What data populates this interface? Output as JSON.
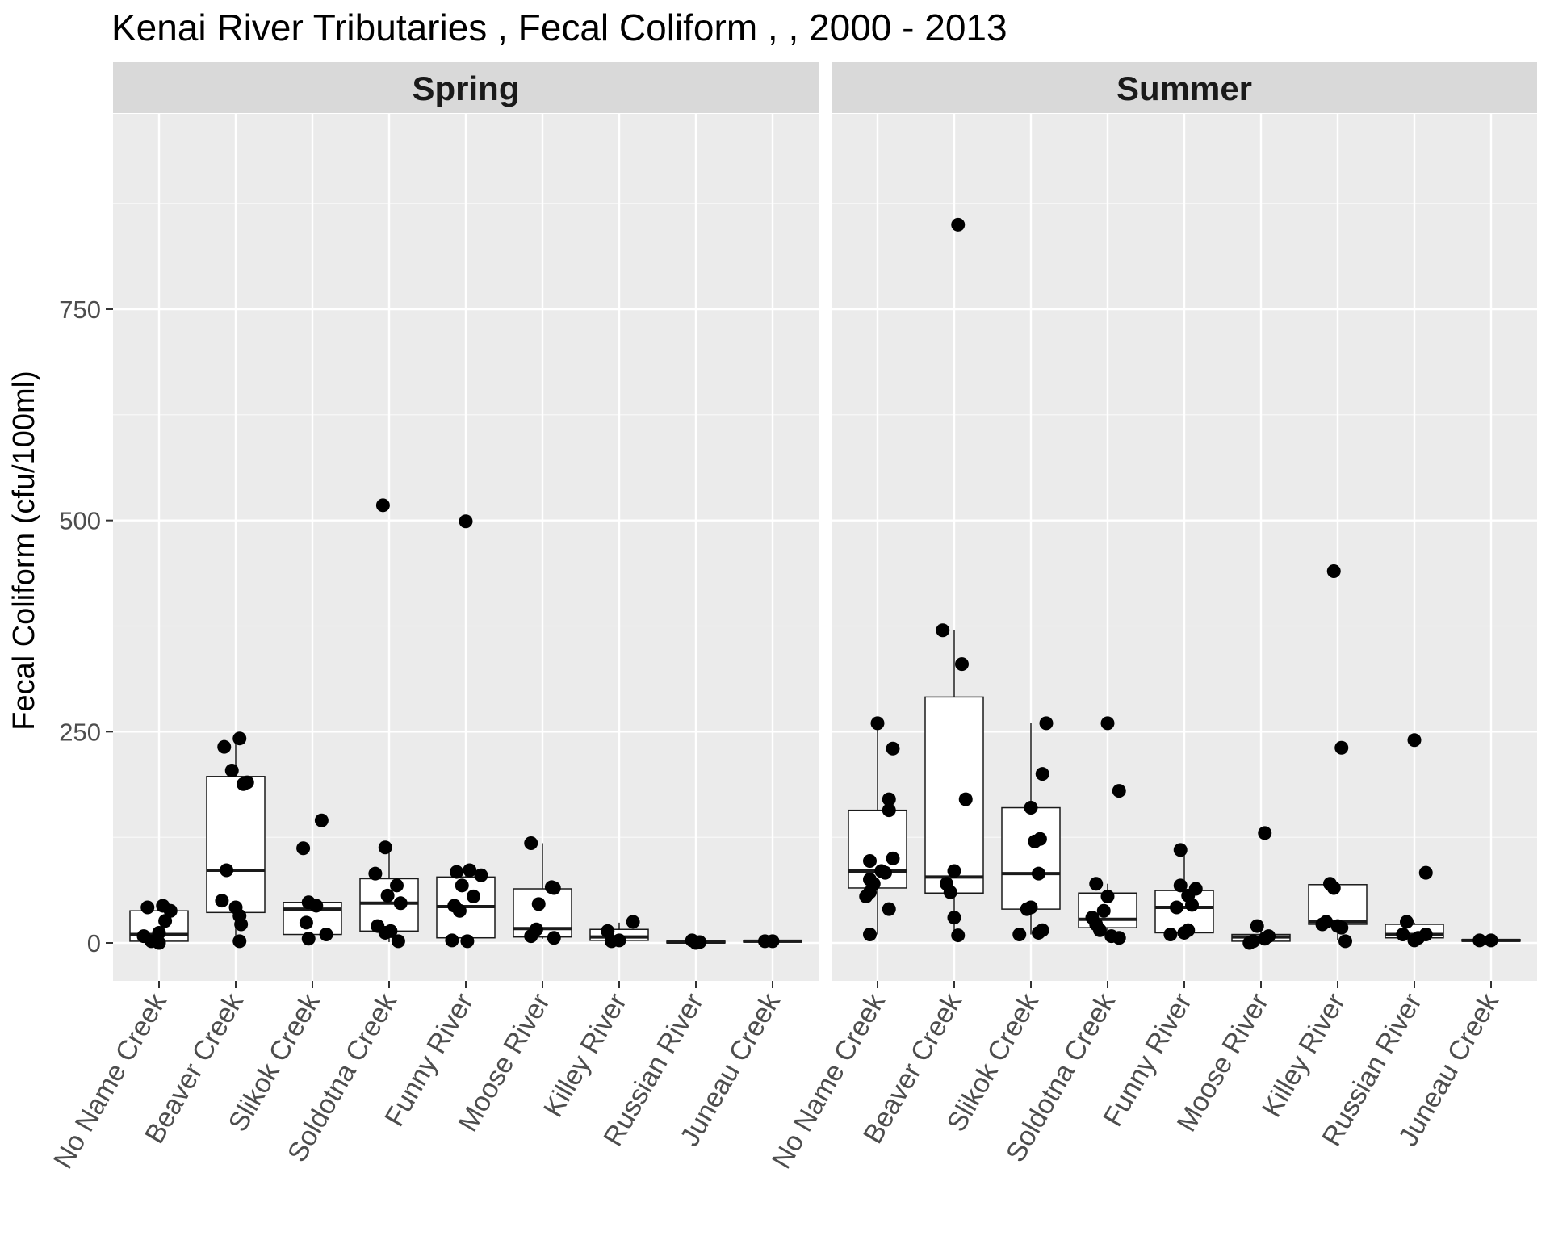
{
  "chart_data": {
    "type": "box",
    "title": "Kenai River Tributaries , Fecal Coliform ,  , 2000 - 2013",
    "ylabel": "Fecal Coliform (cfu/100ml)",
    "xlabel": "",
    "ylim": [
      -45,
      985
    ],
    "yticks": [
      0,
      250,
      500,
      750
    ],
    "grid": true,
    "legend": "none",
    "colors": {
      "panel_bg": "#ebebeb",
      "grid_major": "#ffffff",
      "strip_bg": "#d9d9d9",
      "box_fill": "#ffffff",
      "box_stroke": "#1a1a1a",
      "point": "#000000"
    },
    "categories": [
      "No Name Creek",
      "Beaver Creek",
      "Slikok Creek",
      "Soldotna Creek",
      "Funny River",
      "Moose River",
      "Killey River",
      "Russian River",
      "Juneau Creek"
    ],
    "facets": [
      {
        "name": "Spring",
        "boxes": [
          {
            "q1": 2,
            "median": 10,
            "q3": 38,
            "lower": 0,
            "upper": 45
          },
          {
            "q1": 36,
            "median": 86,
            "q3": 197,
            "lower": 2,
            "upper": 242
          },
          {
            "q1": 10,
            "median": 40,
            "q3": 48,
            "lower": 5,
            "upper": 48
          },
          {
            "q1": 14,
            "median": 47,
            "q3": 76,
            "lower": 1,
            "upper": 113
          },
          {
            "q1": 6,
            "median": 43,
            "q3": 78,
            "lower": 2,
            "upper": 86
          },
          {
            "q1": 7,
            "median": 17,
            "q3": 64,
            "lower": 5,
            "upper": 118
          },
          {
            "q1": 3,
            "median": 7,
            "q3": 16,
            "lower": 2,
            "upper": 24
          },
          {
            "q1": 0,
            "median": 1,
            "q3": 2,
            "lower": 0,
            "upper": 4
          },
          {
            "q1": 1,
            "median": 2,
            "q3": 3,
            "lower": 1,
            "upper": 3
          }
        ],
        "points": [
          [
            [
              -0.2,
              8
            ],
            [
              -0.1,
              2
            ],
            [
              0,
              0
            ],
            [
              0.05,
              44
            ],
            [
              0.08,
              26
            ],
            [
              0.15,
              38
            ],
            [
              -0.15,
              42
            ],
            [
              0.0,
              12
            ]
          ],
          [
            [
              -0.15,
              232
            ],
            [
              0.05,
              242
            ],
            [
              0.1,
              188
            ],
            [
              0.15,
              190
            ],
            [
              -0.05,
              204
            ],
            [
              -0.12,
              86
            ],
            [
              -0.18,
              50
            ],
            [
              0.0,
              42
            ],
            [
              0.07,
              22
            ],
            [
              0.05,
              2
            ],
            [
              0.05,
              32
            ]
          ],
          [
            [
              -0.12,
              112
            ],
            [
              0.12,
              145
            ],
            [
              -0.05,
              48
            ],
            [
              0.05,
              44
            ],
            [
              -0.08,
              24
            ],
            [
              0.18,
              10
            ],
            [
              -0.05,
              5
            ]
          ],
          [
            [
              -0.08,
              518
            ],
            [
              -0.05,
              113
            ],
            [
              -0.18,
              82
            ],
            [
              0.1,
              68
            ],
            [
              -0.02,
              56
            ],
            [
              0.15,
              47
            ],
            [
              -0.15,
              20
            ],
            [
              -0.05,
              12
            ],
            [
              0.02,
              14
            ],
            [
              0.12,
              2
            ]
          ],
          [
            [
              0.0,
              499
            ],
            [
              -0.12,
              84
            ],
            [
              0.05,
              86
            ],
            [
              0.2,
              80
            ],
            [
              -0.05,
              68
            ],
            [
              0.1,
              55
            ],
            [
              -0.15,
              44
            ],
            [
              -0.08,
              38
            ],
            [
              -0.18,
              3
            ],
            [
              0.02,
              2
            ]
          ],
          [
            [
              -0.15,
              118
            ],
            [
              0.15,
              65
            ],
            [
              0.12,
              66
            ],
            [
              -0.05,
              46
            ],
            [
              -0.08,
              16
            ],
            [
              -0.15,
              8
            ],
            [
              0.15,
              6
            ]
          ],
          [
            [
              -0.15,
              14
            ],
            [
              0.18,
              25
            ],
            [
              -0.1,
              2
            ],
            [
              0.0,
              3
            ]
          ],
          [
            [
              -0.05,
              3
            ],
            [
              0.05,
              1
            ],
            [
              0.0,
              0
            ]
          ],
          [
            [
              -0.1,
              2
            ],
            [
              0.0,
              2
            ]
          ]
        ]
      },
      {
        "name": "Summer",
        "boxes": [
          {
            "q1": 65,
            "median": 85,
            "q3": 157,
            "lower": 10,
            "upper": 260
          },
          {
            "q1": 59,
            "median": 78,
            "q3": 291,
            "lower": 9,
            "upper": 370
          },
          {
            "q1": 40,
            "median": 82,
            "q3": 160,
            "lower": 10,
            "upper": 260
          },
          {
            "q1": 18,
            "median": 28,
            "q3": 59,
            "lower": 5,
            "upper": 70
          },
          {
            "q1": 12,
            "median": 42,
            "q3": 62,
            "lower": 9,
            "upper": 110
          },
          {
            "q1": 2,
            "median": 7,
            "q3": 10,
            "lower": 0,
            "upper": 20
          },
          {
            "q1": 22,
            "median": 25,
            "q3": 69,
            "lower": 3,
            "upper": 69
          },
          {
            "q1": 6,
            "median": 10,
            "q3": 22,
            "lower": 2,
            "upper": 24
          },
          {
            "q1": 2,
            "median": 3,
            "q3": 4,
            "lower": 2,
            "upper": 4
          }
        ],
        "points": [
          [
            [
              0.0,
              260
            ],
            [
              0.2,
              230
            ],
            [
              0.15,
              170
            ],
            [
              0.15,
              157
            ],
            [
              0.2,
              100
            ],
            [
              -0.1,
              97
            ],
            [
              0.05,
              85
            ],
            [
              0.1,
              83
            ],
            [
              -0.1,
              75
            ],
            [
              -0.05,
              70
            ],
            [
              -0.15,
              55
            ],
            [
              -0.1,
              60
            ],
            [
              0.15,
              40
            ],
            [
              -0.1,
              10
            ]
          ],
          [
            [
              0.05,
              850
            ],
            [
              -0.15,
              370
            ],
            [
              0.1,
              330
            ],
            [
              0.15,
              170
            ],
            [
              0.0,
              85
            ],
            [
              -0.1,
              70
            ],
            [
              -0.05,
              60
            ],
            [
              0.0,
              30
            ],
            [
              0.05,
              9
            ]
          ],
          [
            [
              0.2,
              260
            ],
            [
              0.15,
              200
            ],
            [
              0.0,
              160
            ],
            [
              0.12,
              123
            ],
            [
              0.05,
              120
            ],
            [
              0.1,
              82
            ],
            [
              0.0,
              42
            ],
            [
              -0.05,
              40
            ],
            [
              0.15,
              15
            ],
            [
              0.1,
              12
            ],
            [
              -0.15,
              10
            ]
          ],
          [
            [
              0.0,
              260
            ],
            [
              0.15,
              180
            ],
            [
              -0.15,
              70
            ],
            [
              0.0,
              55
            ],
            [
              -0.05,
              38
            ],
            [
              -0.2,
              30
            ],
            [
              -0.15,
              22
            ],
            [
              -0.1,
              15
            ],
            [
              0.05,
              8
            ],
            [
              0.15,
              6
            ]
          ],
          [
            [
              -0.05,
              110
            ],
            [
              -0.05,
              68
            ],
            [
              0.15,
              64
            ],
            [
              0.05,
              56
            ],
            [
              -0.1,
              42
            ],
            [
              0.1,
              45
            ],
            [
              0.05,
              15
            ],
            [
              0.0,
              12
            ],
            [
              -0.18,
              10
            ]
          ],
          [
            [
              0.05,
              130
            ],
            [
              -0.05,
              20
            ],
            [
              0.1,
              8
            ],
            [
              0.05,
              5
            ],
            [
              -0.1,
              2
            ],
            [
              -0.15,
              0
            ]
          ],
          [
            [
              -0.05,
              440
            ],
            [
              0.05,
              231
            ],
            [
              -0.1,
              70
            ],
            [
              -0.05,
              65
            ],
            [
              -0.2,
              22
            ],
            [
              -0.15,
              25
            ],
            [
              0.0,
              20
            ],
            [
              0.05,
              18
            ],
            [
              0.1,
              2
            ]
          ],
          [
            [
              0.0,
              240
            ],
            [
              0.15,
              83
            ],
            [
              -0.1,
              25
            ],
            [
              -0.15,
              10
            ],
            [
              0.05,
              6
            ],
            [
              0.15,
              10
            ],
            [
              0.0,
              3
            ]
          ],
          [
            [
              -0.15,
              3
            ],
            [
              0.0,
              3
            ]
          ]
        ]
      }
    ]
  }
}
